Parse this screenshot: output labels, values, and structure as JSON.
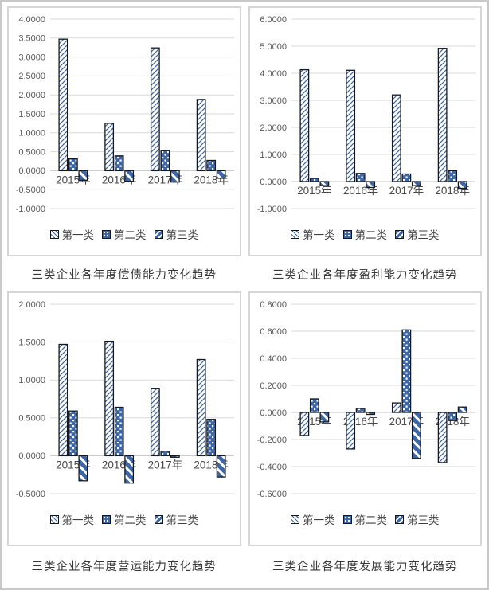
{
  "colors": {
    "bar_blue": "#3d66a6",
    "bar_outline": "#15191f",
    "gridline": "#d9d9d9",
    "zero_line": "#c6c6c6",
    "tick_text": "#595959",
    "xlabel_text": "#4a4a4a",
    "caption_text": "#383838"
  },
  "legend_labels": [
    "第一类",
    "第二类",
    "第三类"
  ],
  "chart_data": [
    {
      "type": "bar",
      "caption": "三类企业各年度偿债能力变化趋势",
      "categories": [
        "2015年",
        "2016年",
        "2017年",
        "2018年"
      ],
      "ylim": {
        "min": -1.0,
        "max": 4.0,
        "step": 0.5
      },
      "tick_format_decimals": 4,
      "grid": true,
      "legend_position": "bottom",
      "series": [
        {
          "name": "第一类",
          "pattern": "diagonal",
          "values": [
            3.47,
            1.25,
            3.24,
            1.88
          ]
        },
        {
          "name": "第二类",
          "pattern": "dots",
          "values": [
            0.31,
            0.39,
            0.53,
            0.27
          ]
        },
        {
          "name": "第三类",
          "pattern": "stripes",
          "values": [
            -0.25,
            -0.28,
            -0.3,
            -0.2
          ]
        }
      ]
    },
    {
      "type": "bar",
      "caption": "三类企业各年度盈利能力变化趋势",
      "categories": [
        "2015年",
        "2016年",
        "2017年",
        "2018年"
      ],
      "ylim": {
        "min": -1.0,
        "max": 6.0,
        "step": 1.0
      },
      "tick_format_decimals": 4,
      "grid": true,
      "legend_position": "bottom",
      "series": [
        {
          "name": "第一类",
          "pattern": "diagonal",
          "values": [
            4.13,
            4.11,
            3.2,
            4.92
          ]
        },
        {
          "name": "第二类",
          "pattern": "dots",
          "values": [
            0.12,
            0.3,
            0.28,
            0.4
          ]
        },
        {
          "name": "第三类",
          "pattern": "stripes",
          "values": [
            -0.15,
            -0.22,
            -0.15,
            -0.25
          ]
        }
      ]
    },
    {
      "type": "bar",
      "caption": "三类企业各年度营运能力变化趋势",
      "categories": [
        "2015年",
        "2016年",
        "2017年",
        "2018年"
      ],
      "ylim": {
        "min": -0.5,
        "max": 2.0,
        "step": 0.5
      },
      "tick_format_decimals": 4,
      "grid": true,
      "legend_position": "bottom",
      "series": [
        {
          "name": "第一类",
          "pattern": "diagonal",
          "values": [
            1.47,
            1.51,
            0.89,
            1.27
          ]
        },
        {
          "name": "第二类",
          "pattern": "dots",
          "values": [
            0.59,
            0.64,
            0.06,
            0.48
          ]
        },
        {
          "name": "第三类",
          "pattern": "stripes",
          "values": [
            -0.33,
            -0.36,
            -0.02,
            -0.28
          ]
        }
      ]
    },
    {
      "type": "bar",
      "caption": "三类企业各年度发展能力变化趋势",
      "categories": [
        "2015年",
        "2016年",
        "2017年",
        "2018年"
      ],
      "ylim": {
        "min": -0.6,
        "max": 0.8,
        "step": 0.2
      },
      "tick_format_decimals": 4,
      "grid": true,
      "legend_position": "bottom",
      "series": [
        {
          "name": "第一类",
          "pattern": "diagonal",
          "values": [
            -0.17,
            -0.27,
            0.07,
            -0.37
          ]
        },
        {
          "name": "第二类",
          "pattern": "dots",
          "values": [
            0.1,
            0.03,
            0.61,
            -0.06
          ]
        },
        {
          "name": "第三类",
          "pattern": "stripes",
          "values": [
            -0.07,
            -0.015,
            -0.34,
            0.04
          ]
        }
      ]
    }
  ]
}
